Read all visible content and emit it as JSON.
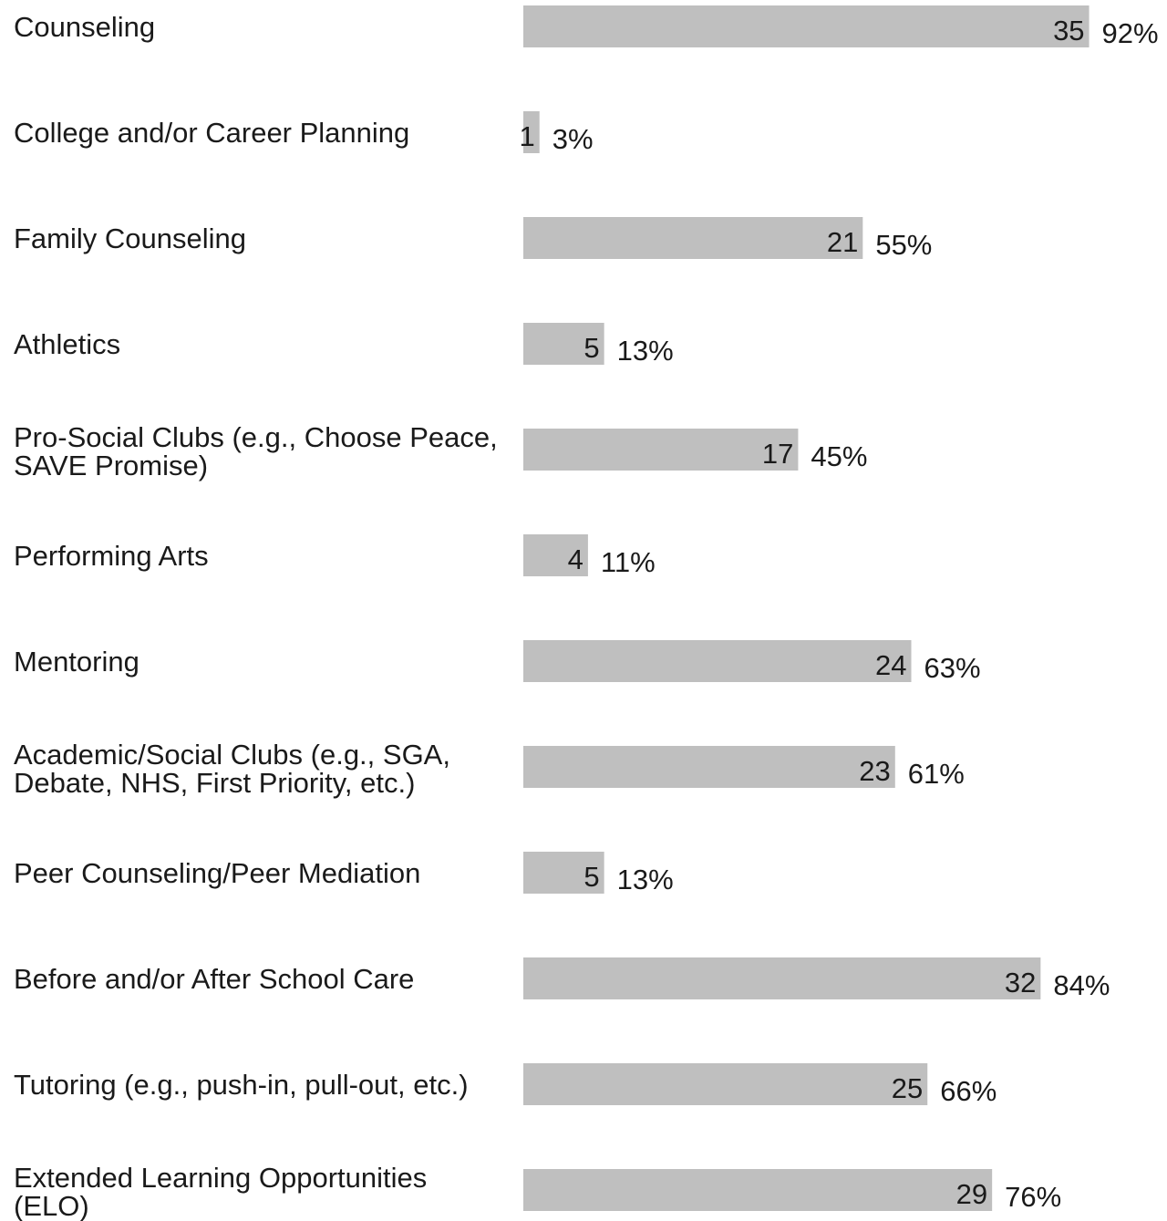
{
  "chart_data": {
    "type": "bar",
    "orientation": "horizontal",
    "bar_color": "#bfbfbf",
    "text_color": "#1a1a1a",
    "grid": false,
    "legend": "none",
    "categories": [
      "Counseling",
      "College and/or Career Planning",
      "Family Counseling",
      "Athletics",
      "Pro-Social Clubs (e.g., Choose Peace, SAVE Promise)",
      "Performing Arts",
      "Mentoring",
      "Academic/Social Clubs (e.g., SGA, Debate, NHS, First Priority, etc.)",
      "Peer Counseling/Peer Mediation",
      "Before and/or After School Care",
      "Tutoring (e.g., push-in, pull-out, etc.)",
      "Extended Learning Opportunities (ELO)"
    ],
    "category_lines": [
      [
        "Counseling"
      ],
      [
        "College and/or Career Planning"
      ],
      [
        "Family Counseling"
      ],
      [
        "Athletics"
      ],
      [
        "Pro-Social Clubs (e.g., Choose Peace,",
        "SAVE Promise)"
      ],
      [
        "Performing Arts"
      ],
      [
        "Mentoring"
      ],
      [
        "Academic/Social Clubs (e.g., SGA,",
        "Debate, NHS, First Priority, etc.)"
      ],
      [
        "Peer Counseling/Peer Mediation"
      ],
      [
        "Before and/or After School Care"
      ],
      [
        "Tutoring (e.g., push-in, pull-out, etc.)"
      ],
      [
        "Extended Learning Opportunities",
        "(ELO)"
      ]
    ],
    "values": [
      35,
      1,
      21,
      5,
      17,
      4,
      24,
      23,
      5,
      32,
      25,
      29
    ],
    "value_labels": [
      "35",
      "1",
      "21",
      "5",
      "17",
      "4",
      "24",
      "23",
      "5",
      "32",
      "25",
      "29"
    ],
    "percent_labels": [
      "92%",
      "3%",
      "55%",
      "13%",
      "45%",
      "11%",
      "63%",
      "61%",
      "13%",
      "84%",
      "66%",
      "76%"
    ]
  }
}
